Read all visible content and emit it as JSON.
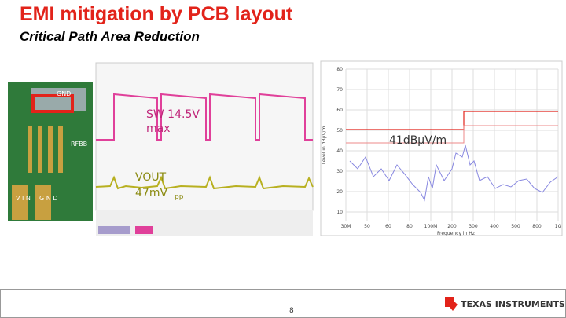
{
  "header": {
    "title": "EMI mitigation by PCB layout",
    "subtitle": "Critical Path Area Reduction"
  },
  "pcb": {
    "labels": [
      "GND",
      "RFBB",
      "V I N",
      "G N D"
    ]
  },
  "scope": {
    "sw_label": "SW 14.5V",
    "sw_sub": "max",
    "vout_label": "VOUT",
    "ripple": "47mV",
    "ripple_sub": "pp"
  },
  "emi": {
    "annotation": "41dBμV/m",
    "y_axis_label": "Level in dBµV/m",
    "x_axis_label": "Frequency in Hz",
    "yticks": [
      "80",
      "70",
      "60",
      "50",
      "40",
      "30",
      "20",
      "10"
    ],
    "xticks": [
      "30M",
      "50",
      "60",
      "80",
      "100M",
      "200",
      "300",
      "400",
      "500",
      "800",
      "1G"
    ]
  },
  "footer": {
    "page": "8",
    "logo": "TEXAS INSTRUMENTS"
  }
}
